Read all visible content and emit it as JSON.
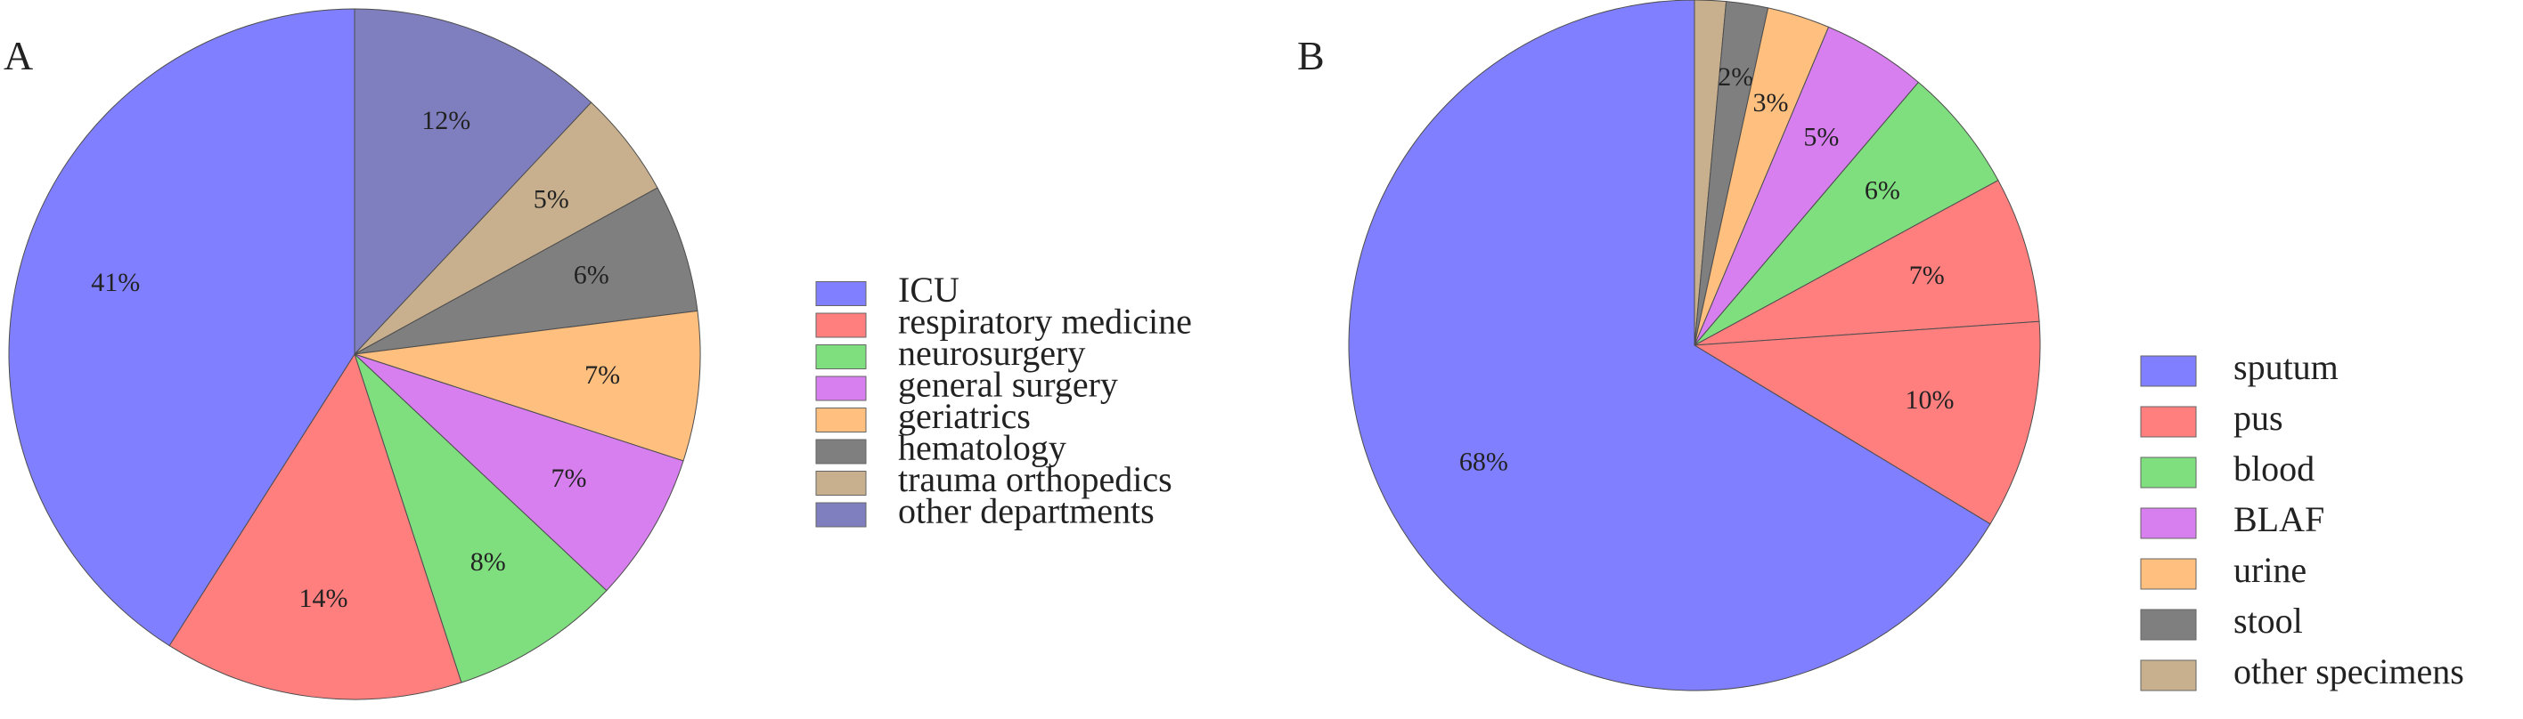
{
  "chart_data": [
    {
      "type": "pie",
      "panel_label": "A",
      "start_angle": "top",
      "direction": "clockwise",
      "legend_position": "right",
      "slices": [
        {
          "label": "other departments",
          "value": 12,
          "value_label": "12%",
          "color": "#7f7fbf"
        },
        {
          "label": "trauma orthopedics",
          "value": 5,
          "value_label": "5%",
          "color": "#c8b08e"
        },
        {
          "label": "hematology",
          "value": 6,
          "value_label": "6%",
          "color": "#7f7f7f"
        },
        {
          "label": "geriatrics",
          "value": 7,
          "value_label": "7%",
          "color": "#ffbf7f"
        },
        {
          "label": "general surgery",
          "value": 7,
          "value_label": "7%",
          "color": "#d87ff0"
        },
        {
          "label": "neurosurgery",
          "value": 8,
          "value_label": "8%",
          "color": "#7fdf7f"
        },
        {
          "label": "respiratory medicine",
          "value": 14,
          "value_label": "14%",
          "color": "#ff7f7f"
        },
        {
          "label": "ICU",
          "value": 41,
          "value_label": "41%",
          "color": "#7f7fff"
        }
      ],
      "legend": [
        "ICU",
        "respiratory medicine",
        "neurosurgery",
        "general surgery",
        "geriatrics",
        "hematology",
        "trauma orthopedics",
        "other departments"
      ]
    },
    {
      "type": "pie",
      "panel_label": "B",
      "start_angle": "top",
      "direction": "clockwise",
      "legend_position": "right",
      "slices": [
        {
          "label": "other specimens",
          "value": 1.5,
          "value_label": "",
          "color": "#c8b08e"
        },
        {
          "label": "stool",
          "value": 2,
          "value_label": "2%",
          "color": "#7f7f7f"
        },
        {
          "label": "urine",
          "value": 3,
          "value_label": "3%",
          "color": "#ffbf7f"
        },
        {
          "label": "BLAF",
          "value": 5,
          "value_label": "5%",
          "color": "#d87ff0"
        },
        {
          "label": "blood",
          "value": 6,
          "value_label": "6%",
          "color": "#7fdf7f"
        },
        {
          "label": "pus",
          "value": 7,
          "value_label": "7%",
          "color": "#ff7f7f"
        },
        {
          "label": "",
          "value": 10,
          "value_label": "10%",
          "color": "#ff7f7f"
        },
        {
          "label": "sputum",
          "value": 68,
          "value_label": "68%",
          "color": "#7f7fff"
        }
      ],
      "legend": [
        "sputum",
        "pus",
        "blood",
        "BLAF",
        "urine",
        "stool",
        "other specimens"
      ]
    }
  ]
}
